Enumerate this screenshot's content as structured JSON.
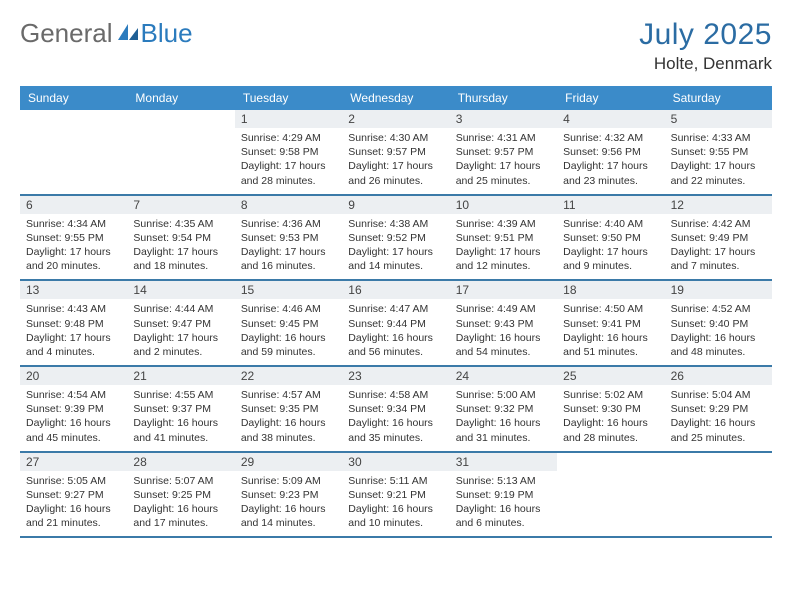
{
  "brand": {
    "part1": "General",
    "part2": "Blue"
  },
  "title": "July 2025",
  "location": "Holte, Denmark",
  "colors": {
    "header_bg": "#3b8bc9",
    "border": "#3b7aa8",
    "daynum_bg": "#eceff2",
    "title_color": "#2b6ca3",
    "brand_gray": "#6a6a6a",
    "brand_blue": "#2b7bbd",
    "text": "#333333",
    "white": "#ffffff"
  },
  "weekdays": [
    "Sunday",
    "Monday",
    "Tuesday",
    "Wednesday",
    "Thursday",
    "Friday",
    "Saturday"
  ],
  "weeks": [
    [
      null,
      null,
      {
        "n": "1",
        "sr": "Sunrise: 4:29 AM",
        "ss": "Sunset: 9:58 PM",
        "dl": "Daylight: 17 hours and 28 minutes."
      },
      {
        "n": "2",
        "sr": "Sunrise: 4:30 AM",
        "ss": "Sunset: 9:57 PM",
        "dl": "Daylight: 17 hours and 26 minutes."
      },
      {
        "n": "3",
        "sr": "Sunrise: 4:31 AM",
        "ss": "Sunset: 9:57 PM",
        "dl": "Daylight: 17 hours and 25 minutes."
      },
      {
        "n": "4",
        "sr": "Sunrise: 4:32 AM",
        "ss": "Sunset: 9:56 PM",
        "dl": "Daylight: 17 hours and 23 minutes."
      },
      {
        "n": "5",
        "sr": "Sunrise: 4:33 AM",
        "ss": "Sunset: 9:55 PM",
        "dl": "Daylight: 17 hours and 22 minutes."
      }
    ],
    [
      {
        "n": "6",
        "sr": "Sunrise: 4:34 AM",
        "ss": "Sunset: 9:55 PM",
        "dl": "Daylight: 17 hours and 20 minutes."
      },
      {
        "n": "7",
        "sr": "Sunrise: 4:35 AM",
        "ss": "Sunset: 9:54 PM",
        "dl": "Daylight: 17 hours and 18 minutes."
      },
      {
        "n": "8",
        "sr": "Sunrise: 4:36 AM",
        "ss": "Sunset: 9:53 PM",
        "dl": "Daylight: 17 hours and 16 minutes."
      },
      {
        "n": "9",
        "sr": "Sunrise: 4:38 AM",
        "ss": "Sunset: 9:52 PM",
        "dl": "Daylight: 17 hours and 14 minutes."
      },
      {
        "n": "10",
        "sr": "Sunrise: 4:39 AM",
        "ss": "Sunset: 9:51 PM",
        "dl": "Daylight: 17 hours and 12 minutes."
      },
      {
        "n": "11",
        "sr": "Sunrise: 4:40 AM",
        "ss": "Sunset: 9:50 PM",
        "dl": "Daylight: 17 hours and 9 minutes."
      },
      {
        "n": "12",
        "sr": "Sunrise: 4:42 AM",
        "ss": "Sunset: 9:49 PM",
        "dl": "Daylight: 17 hours and 7 minutes."
      }
    ],
    [
      {
        "n": "13",
        "sr": "Sunrise: 4:43 AM",
        "ss": "Sunset: 9:48 PM",
        "dl": "Daylight: 17 hours and 4 minutes."
      },
      {
        "n": "14",
        "sr": "Sunrise: 4:44 AM",
        "ss": "Sunset: 9:47 PM",
        "dl": "Daylight: 17 hours and 2 minutes."
      },
      {
        "n": "15",
        "sr": "Sunrise: 4:46 AM",
        "ss": "Sunset: 9:45 PM",
        "dl": "Daylight: 16 hours and 59 minutes."
      },
      {
        "n": "16",
        "sr": "Sunrise: 4:47 AM",
        "ss": "Sunset: 9:44 PM",
        "dl": "Daylight: 16 hours and 56 minutes."
      },
      {
        "n": "17",
        "sr": "Sunrise: 4:49 AM",
        "ss": "Sunset: 9:43 PM",
        "dl": "Daylight: 16 hours and 54 minutes."
      },
      {
        "n": "18",
        "sr": "Sunrise: 4:50 AM",
        "ss": "Sunset: 9:41 PM",
        "dl": "Daylight: 16 hours and 51 minutes."
      },
      {
        "n": "19",
        "sr": "Sunrise: 4:52 AM",
        "ss": "Sunset: 9:40 PM",
        "dl": "Daylight: 16 hours and 48 minutes."
      }
    ],
    [
      {
        "n": "20",
        "sr": "Sunrise: 4:54 AM",
        "ss": "Sunset: 9:39 PM",
        "dl": "Daylight: 16 hours and 45 minutes."
      },
      {
        "n": "21",
        "sr": "Sunrise: 4:55 AM",
        "ss": "Sunset: 9:37 PM",
        "dl": "Daylight: 16 hours and 41 minutes."
      },
      {
        "n": "22",
        "sr": "Sunrise: 4:57 AM",
        "ss": "Sunset: 9:35 PM",
        "dl": "Daylight: 16 hours and 38 minutes."
      },
      {
        "n": "23",
        "sr": "Sunrise: 4:58 AM",
        "ss": "Sunset: 9:34 PM",
        "dl": "Daylight: 16 hours and 35 minutes."
      },
      {
        "n": "24",
        "sr": "Sunrise: 5:00 AM",
        "ss": "Sunset: 9:32 PM",
        "dl": "Daylight: 16 hours and 31 minutes."
      },
      {
        "n": "25",
        "sr": "Sunrise: 5:02 AM",
        "ss": "Sunset: 9:30 PM",
        "dl": "Daylight: 16 hours and 28 minutes."
      },
      {
        "n": "26",
        "sr": "Sunrise: 5:04 AM",
        "ss": "Sunset: 9:29 PM",
        "dl": "Daylight: 16 hours and 25 minutes."
      }
    ],
    [
      {
        "n": "27",
        "sr": "Sunrise: 5:05 AM",
        "ss": "Sunset: 9:27 PM",
        "dl": "Daylight: 16 hours and 21 minutes."
      },
      {
        "n": "28",
        "sr": "Sunrise: 5:07 AM",
        "ss": "Sunset: 9:25 PM",
        "dl": "Daylight: 16 hours and 17 minutes."
      },
      {
        "n": "29",
        "sr": "Sunrise: 5:09 AM",
        "ss": "Sunset: 9:23 PM",
        "dl": "Daylight: 16 hours and 14 minutes."
      },
      {
        "n": "30",
        "sr": "Sunrise: 5:11 AM",
        "ss": "Sunset: 9:21 PM",
        "dl": "Daylight: 16 hours and 10 minutes."
      },
      {
        "n": "31",
        "sr": "Sunrise: 5:13 AM",
        "ss": "Sunset: 9:19 PM",
        "dl": "Daylight: 16 hours and 6 minutes."
      },
      null,
      null
    ]
  ]
}
